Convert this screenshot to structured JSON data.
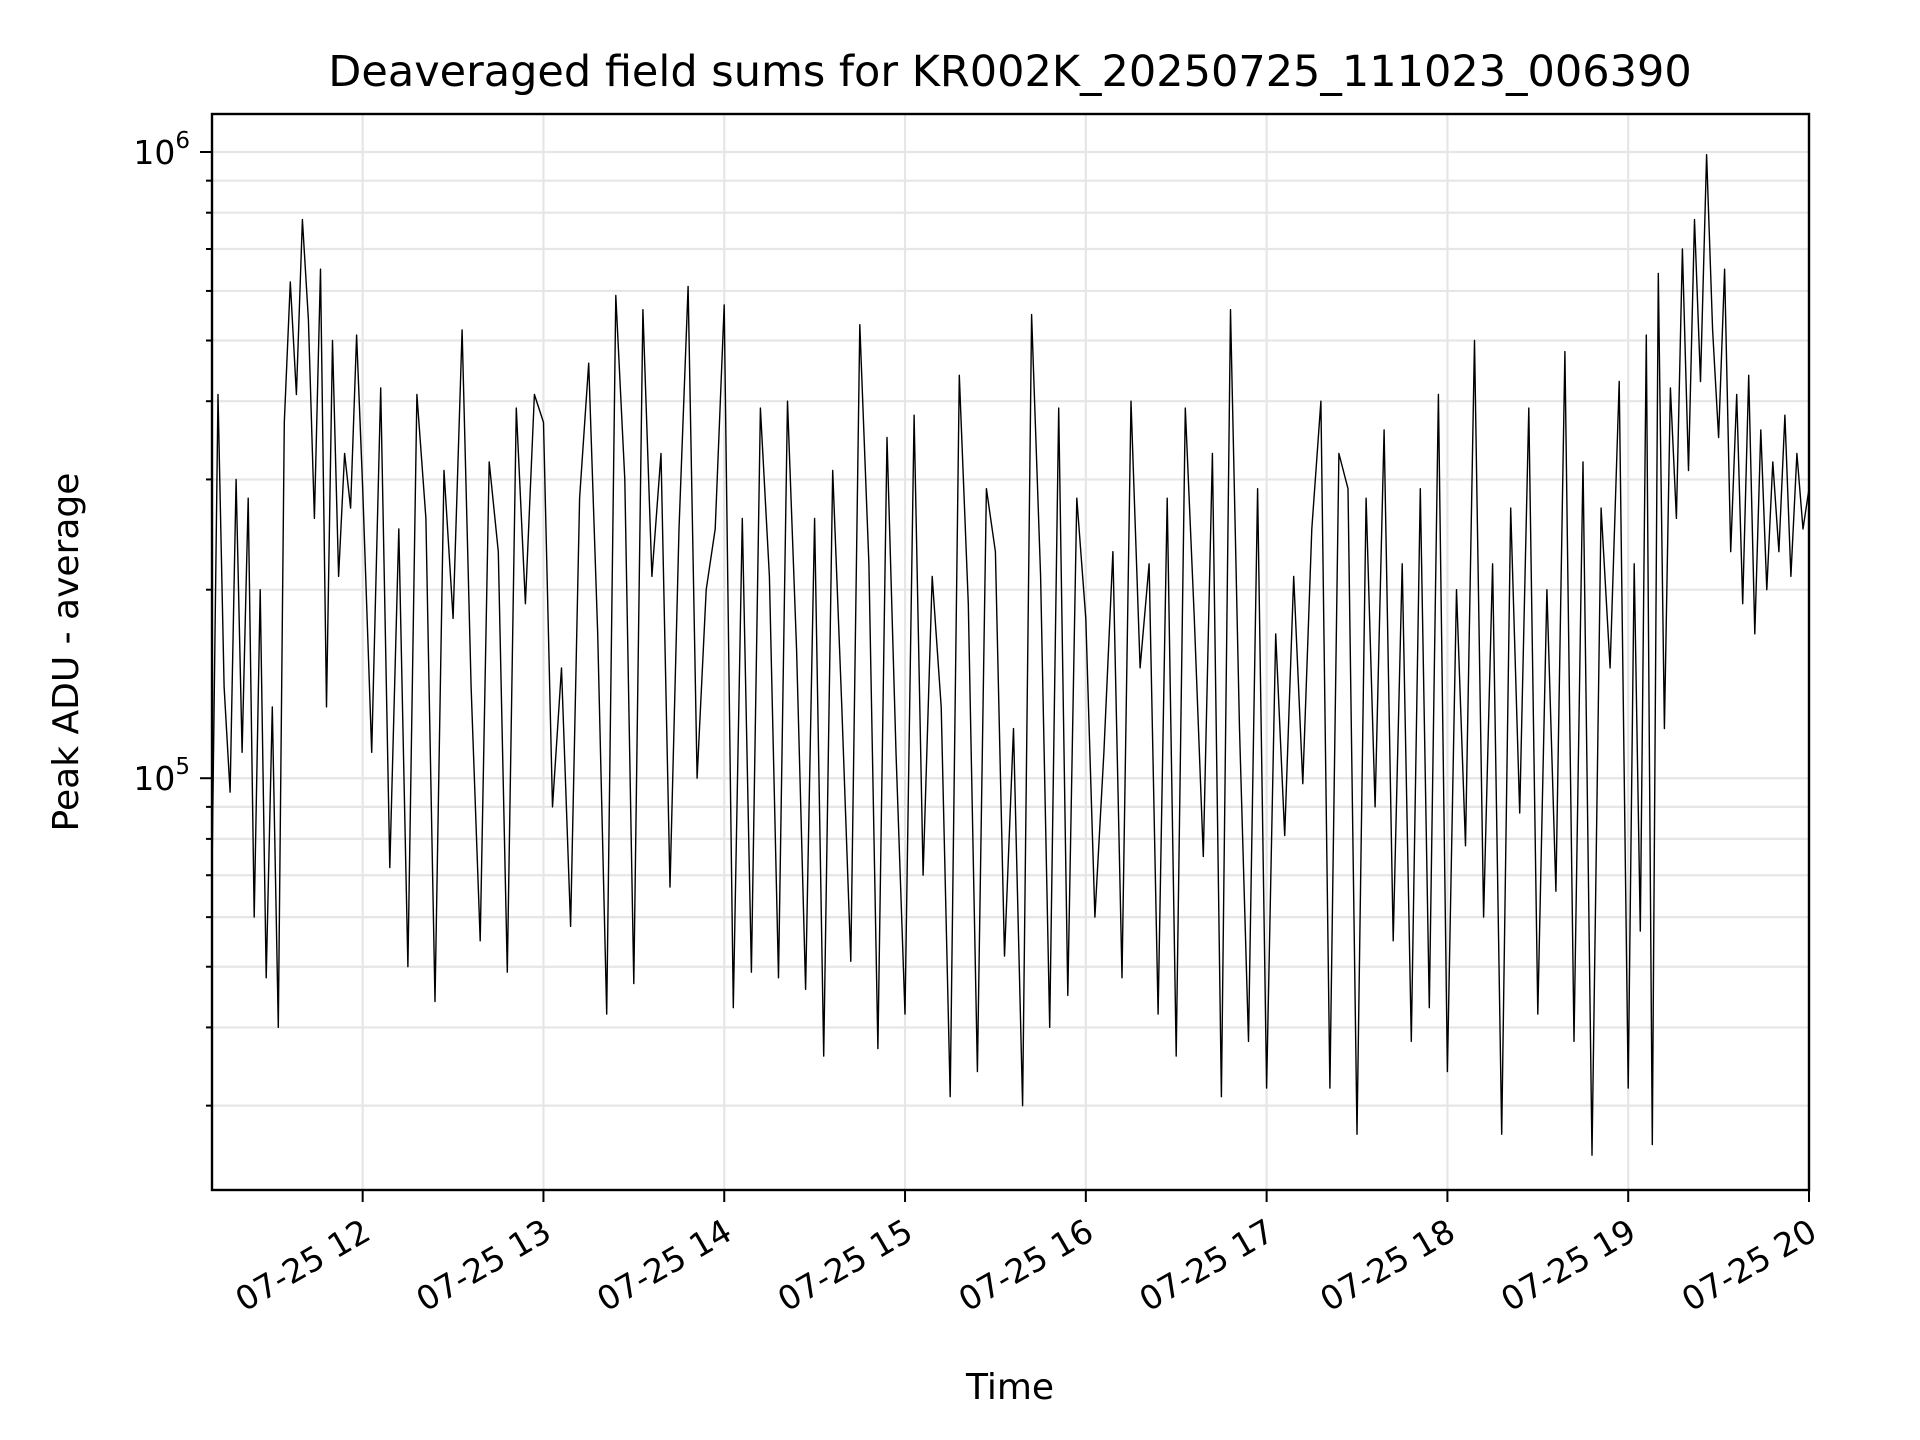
{
  "chart_data": {
    "type": "line",
    "title": "Deaveraged field sums for KR002K_20250725_111023_006390",
    "xlabel": "Time",
    "ylabel": "Peak ADU - average",
    "yscale": "log",
    "grid": true,
    "legend": "none",
    "line_color": "#000000",
    "x_range": [
      "2025-07-25 11:10",
      "2025-07-25 20:00"
    ],
    "ylim": [
      22000,
      1150000
    ],
    "x_ticks": [
      {
        "value": "2025-07-25 12:00",
        "label": "07-25 12"
      },
      {
        "value": "2025-07-25 13:00",
        "label": "07-25 13"
      },
      {
        "value": "2025-07-25 14:00",
        "label": "07-25 14"
      },
      {
        "value": "2025-07-25 15:00",
        "label": "07-25 15"
      },
      {
        "value": "2025-07-25 16:00",
        "label": "07-25 16"
      },
      {
        "value": "2025-07-25 17:00",
        "label": "07-25 17"
      },
      {
        "value": "2025-07-25 18:00",
        "label": "07-25 18"
      },
      {
        "value": "2025-07-25 19:00",
        "label": "07-25 19"
      },
      {
        "value": "2025-07-25 20:00",
        "label": "07-25 20"
      }
    ],
    "y_ticks": [
      {
        "value": 100000,
        "base": "10",
        "exp": "5"
      },
      {
        "value": 1000000,
        "base": "10",
        "exp": "6"
      }
    ],
    "series": [
      {
        "x": [
          "2025-07-25 11:10",
          "2025-07-25 11:12",
          "2025-07-25 11:14",
          "2025-07-25 11:16",
          "2025-07-25 11:18",
          "2025-07-25 11:20",
          "2025-07-25 11:22",
          "2025-07-25 11:24",
          "2025-07-25 11:26",
          "2025-07-25 11:28",
          "2025-07-25 11:30",
          "2025-07-25 11:32",
          "2025-07-25 11:34",
          "2025-07-25 11:36",
          "2025-07-25 11:38",
          "2025-07-25 11:40",
          "2025-07-25 11:42",
          "2025-07-25 11:44",
          "2025-07-25 11:46",
          "2025-07-25 11:48",
          "2025-07-25 11:50",
          "2025-07-25 11:52",
          "2025-07-25 11:54",
          "2025-07-25 11:56",
          "2025-07-25 11:58",
          "2025-07-25 12:00",
          "2025-07-25 12:03",
          "2025-07-25 12:06",
          "2025-07-25 12:09",
          "2025-07-25 12:12",
          "2025-07-25 12:15",
          "2025-07-25 12:18",
          "2025-07-25 12:21",
          "2025-07-25 12:24",
          "2025-07-25 12:27",
          "2025-07-25 12:30",
          "2025-07-25 12:33",
          "2025-07-25 12:36",
          "2025-07-25 12:39",
          "2025-07-25 12:42",
          "2025-07-25 12:45",
          "2025-07-25 12:48",
          "2025-07-25 12:51",
          "2025-07-25 12:54",
          "2025-07-25 12:57",
          "2025-07-25 13:00",
          "2025-07-25 13:03",
          "2025-07-25 13:06",
          "2025-07-25 13:09",
          "2025-07-25 13:12",
          "2025-07-25 13:15",
          "2025-07-25 13:18",
          "2025-07-25 13:21",
          "2025-07-25 13:24",
          "2025-07-25 13:27",
          "2025-07-25 13:30",
          "2025-07-25 13:33",
          "2025-07-25 13:36",
          "2025-07-25 13:39",
          "2025-07-25 13:42",
          "2025-07-25 13:45",
          "2025-07-25 13:48",
          "2025-07-25 13:51",
          "2025-07-25 13:54",
          "2025-07-25 13:57",
          "2025-07-25 14:00",
          "2025-07-25 14:03",
          "2025-07-25 14:06",
          "2025-07-25 14:09",
          "2025-07-25 14:12",
          "2025-07-25 14:15",
          "2025-07-25 14:18",
          "2025-07-25 14:21",
          "2025-07-25 14:24",
          "2025-07-25 14:27",
          "2025-07-25 14:30",
          "2025-07-25 14:33",
          "2025-07-25 14:36",
          "2025-07-25 14:39",
          "2025-07-25 14:42",
          "2025-07-25 14:45",
          "2025-07-25 14:48",
          "2025-07-25 14:51",
          "2025-07-25 14:54",
          "2025-07-25 14:57",
          "2025-07-25 15:00",
          "2025-07-25 15:03",
          "2025-07-25 15:06",
          "2025-07-25 15:09",
          "2025-07-25 15:12",
          "2025-07-25 15:15",
          "2025-07-25 15:18",
          "2025-07-25 15:21",
          "2025-07-25 15:24",
          "2025-07-25 15:27",
          "2025-07-25 15:30",
          "2025-07-25 15:33",
          "2025-07-25 15:36",
          "2025-07-25 15:39",
          "2025-07-25 15:42",
          "2025-07-25 15:45",
          "2025-07-25 15:48",
          "2025-07-25 15:51",
          "2025-07-25 15:54",
          "2025-07-25 15:57",
          "2025-07-25 16:00",
          "2025-07-25 16:03",
          "2025-07-25 16:06",
          "2025-07-25 16:09",
          "2025-07-25 16:12",
          "2025-07-25 16:15",
          "2025-07-25 16:18",
          "2025-07-25 16:21",
          "2025-07-25 16:24",
          "2025-07-25 16:27",
          "2025-07-25 16:30",
          "2025-07-25 16:33",
          "2025-07-25 16:36",
          "2025-07-25 16:39",
          "2025-07-25 16:42",
          "2025-07-25 16:45",
          "2025-07-25 16:48",
          "2025-07-25 16:51",
          "2025-07-25 16:54",
          "2025-07-25 16:57",
          "2025-07-25 17:00",
          "2025-07-25 17:03",
          "2025-07-25 17:06",
          "2025-07-25 17:09",
          "2025-07-25 17:12",
          "2025-07-25 17:15",
          "2025-07-25 17:18",
          "2025-07-25 17:21",
          "2025-07-25 17:24",
          "2025-07-25 17:27",
          "2025-07-25 17:30",
          "2025-07-25 17:33",
          "2025-07-25 17:36",
          "2025-07-25 17:39",
          "2025-07-25 17:42",
          "2025-07-25 17:45",
          "2025-07-25 17:48",
          "2025-07-25 17:51",
          "2025-07-25 17:54",
          "2025-07-25 17:57",
          "2025-07-25 18:00",
          "2025-07-25 18:03",
          "2025-07-25 18:06",
          "2025-07-25 18:09",
          "2025-07-25 18:12",
          "2025-07-25 18:15",
          "2025-07-25 18:18",
          "2025-07-25 18:21",
          "2025-07-25 18:24",
          "2025-07-25 18:27",
          "2025-07-25 18:30",
          "2025-07-25 18:33",
          "2025-07-25 18:36",
          "2025-07-25 18:39",
          "2025-07-25 18:42",
          "2025-07-25 18:45",
          "2025-07-25 18:48",
          "2025-07-25 18:51",
          "2025-07-25 18:54",
          "2025-07-25 18:57",
          "2025-07-25 19:00",
          "2025-07-25 19:02",
          "2025-07-25 19:04",
          "2025-07-25 19:06",
          "2025-07-25 19:08",
          "2025-07-25 19:10",
          "2025-07-25 19:12",
          "2025-07-25 19:14",
          "2025-07-25 19:16",
          "2025-07-25 19:18",
          "2025-07-25 19:20",
          "2025-07-25 19:22",
          "2025-07-25 19:24",
          "2025-07-25 19:26",
          "2025-07-25 19:28",
          "2025-07-25 19:30",
          "2025-07-25 19:32",
          "2025-07-25 19:34",
          "2025-07-25 19:36",
          "2025-07-25 19:38",
          "2025-07-25 19:40",
          "2025-07-25 19:42",
          "2025-07-25 19:44",
          "2025-07-25 19:46",
          "2025-07-25 19:48",
          "2025-07-25 19:50",
          "2025-07-25 19:52",
          "2025-07-25 19:54",
          "2025-07-25 19:56",
          "2025-07-25 19:58",
          "2025-07-25 20:00"
        ],
        "y": [
          70000,
          410000,
          140000,
          95000,
          300000,
          110000,
          280000,
          60000,
          200000,
          48000,
          130000,
          40000,
          370000,
          620000,
          410000,
          780000,
          540000,
          260000,
          650000,
          130000,
          500000,
          210000,
          330000,
          270000,
          510000,
          290000,
          110000,
          420000,
          72000,
          250000,
          50000,
          410000,
          260000,
          44000,
          310000,
          180000,
          520000,
          140000,
          55000,
          320000,
          230000,
          49000,
          390000,
          190000,
          410000,
          370000,
          90000,
          150000,
          58000,
          280000,
          460000,
          170000,
          42000,
          590000,
          300000,
          47000,
          560000,
          210000,
          330000,
          67000,
          250000,
          610000,
          100000,
          200000,
          250000,
          570000,
          43000,
          260000,
          49000,
          390000,
          210000,
          48000,
          400000,
          160000,
          46000,
          260000,
          36000,
          310000,
          130000,
          51000,
          530000,
          220000,
          37000,
          350000,
          110000,
          42000,
          380000,
          70000,
          210000,
          130000,
          31000,
          440000,
          190000,
          34000,
          290000,
          230000,
          52000,
          120000,
          30000,
          550000,
          210000,
          40000,
          390000,
          45000,
          280000,
          180000,
          60000,
          110000,
          230000,
          48000,
          400000,
          150000,
          220000,
          42000,
          280000,
          36000,
          390000,
          180000,
          75000,
          330000,
          31000,
          560000,
          120000,
          38000,
          290000,
          32000,
          170000,
          81000,
          210000,
          98000,
          250000,
          400000,
          32000,
          330000,
          290000,
          27000,
          280000,
          90000,
          360000,
          55000,
          220000,
          38000,
          290000,
          43000,
          410000,
          34000,
          200000,
          78000,
          500000,
          60000,
          220000,
          27000,
          270000,
          88000,
          390000,
          42000,
          200000,
          66000,
          480000,
          38000,
          320000,
          25000,
          270000,
          150000,
          430000,
          32000,
          220000,
          57000,
          510000,
          26000,
          640000,
          120000,
          420000,
          260000,
          700000,
          310000,
          780000,
          430000,
          990000,
          520000,
          350000,
          650000,
          230000,
          410000,
          190000,
          440000,
          170000,
          360000,
          200000,
          320000,
          230000,
          380000,
          210000,
          330000,
          250000,
          290000
        ]
      }
    ]
  }
}
